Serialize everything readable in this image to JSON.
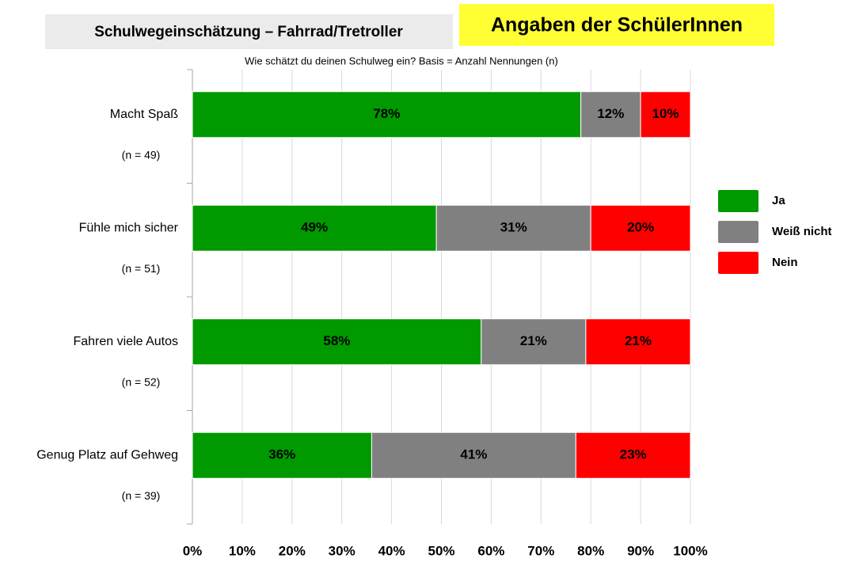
{
  "chart_data": {
    "type": "stacked-bar-horizontal",
    "title": "Schulwegeinschätzung – Fahrrad/Tretroller",
    "badge": "Angaben der SchülerInnen",
    "subtitle": "Wie schätzt du deinen Schulweg ein? Basis = Anzahl Nennungen (n)",
    "categories": [
      "Macht Spaß",
      "Fühle mich sicher",
      "Fahren viele Autos",
      "Genug Platz auf Gehweg"
    ],
    "category_counts": [
      "(n = 49)",
      "(n = 51)",
      "(n = 52)",
      "(n = 39)"
    ],
    "series": [
      {
        "name": "Ja",
        "color": "#009900",
        "values": [
          78,
          49,
          58,
          36
        ],
        "value_labels": [
          "78%",
          "49%",
          "58%",
          "36%"
        ]
      },
      {
        "name": "Weiß nicht",
        "color": "#808080",
        "values": [
          12,
          31,
          21,
          41
        ],
        "value_labels": [
          "12%",
          "31%",
          "21%",
          "41%"
        ]
      },
      {
        "name": "Nein",
        "color": "#ff0000",
        "values": [
          10,
          20,
          21,
          23
        ],
        "value_labels": [
          "10%",
          "20%",
          "21%",
          "23%"
        ]
      }
    ],
    "xlim": [
      0,
      100
    ],
    "xticks": [
      {
        "value": 0,
        "label": "0%"
      },
      {
        "value": 10,
        "label": "10%"
      },
      {
        "value": 20,
        "label": "20%"
      },
      {
        "value": 30,
        "label": "30%"
      },
      {
        "value": 40,
        "label": "40%"
      },
      {
        "value": 50,
        "label": "50%"
      },
      {
        "value": 60,
        "label": "60%"
      },
      {
        "value": 70,
        "label": "70%"
      },
      {
        "value": 80,
        "label": "80%"
      },
      {
        "value": 90,
        "label": "90%"
      },
      {
        "value": 100,
        "label": "100%"
      }
    ],
    "grid": true,
    "legend": "right"
  }
}
